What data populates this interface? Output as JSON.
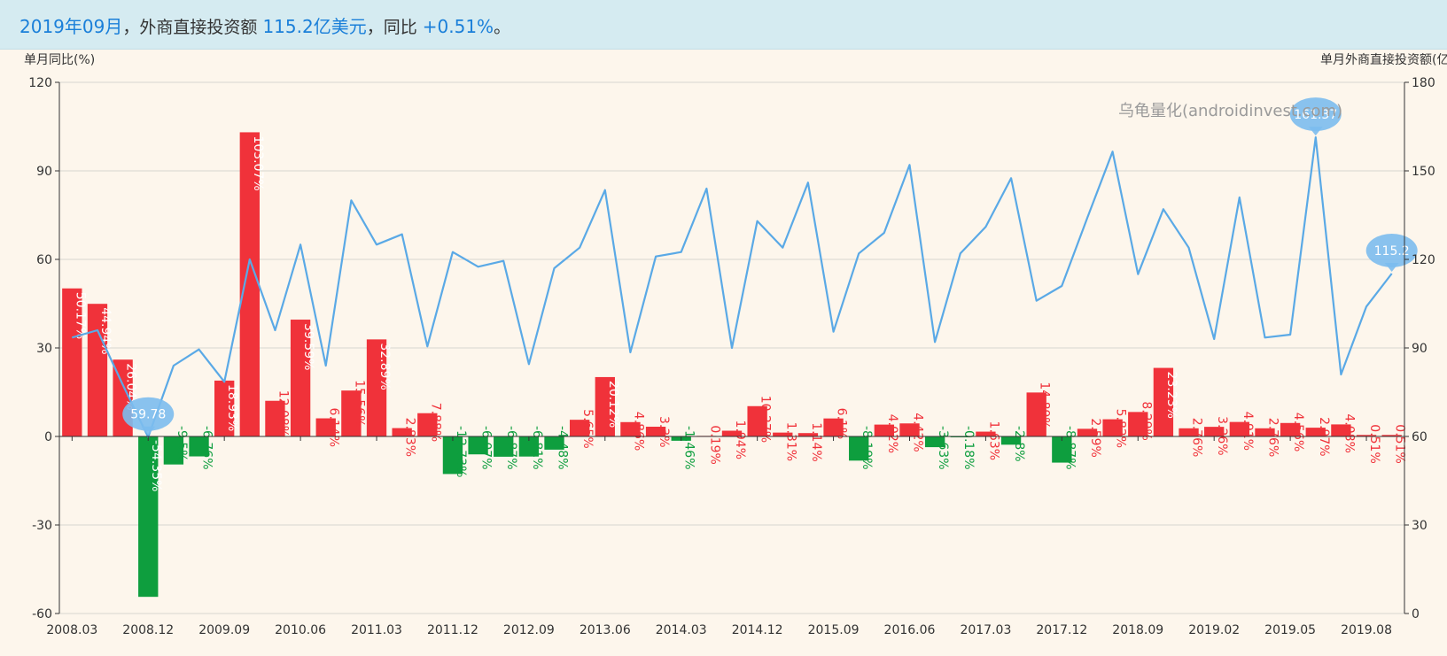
{
  "banner": {
    "period": "2019年09月",
    "sep1": "，",
    "label": "外商直接投资额",
    "amount": "115.2亿美元",
    "sep2": "，同比",
    "yoy": "+0.51%",
    "end": "。"
  },
  "watermark": "乌龟量化(androidinvest.com)",
  "colors": {
    "positive": "#f0323a",
    "negative": "#0e9e3e",
    "line": "#5aa9e6",
    "bubble": "#7cbcee"
  },
  "chart_data": {
    "type": "bar+line",
    "left_axis": {
      "label": "单月同比(%)",
      "range": [
        -60,
        120
      ],
      "ticks": [
        -60,
        -30,
        0,
        30,
        60,
        90,
        120
      ]
    },
    "right_axis": {
      "label": "单月外商直接投资额(亿美元)",
      "range": [
        0,
        180
      ],
      "ticks": [
        0,
        30,
        60,
        90,
        120,
        150,
        180
      ]
    },
    "x_tick_labels": [
      "2008.03",
      "2008.12",
      "2009.09",
      "2010.06",
      "2011.03",
      "2011.12",
      "2012.09",
      "2013.06",
      "2014.03",
      "2014.12",
      "2015.09",
      "2016.06",
      "2017.03",
      "2017.12",
      "2018.09",
      "2019.02",
      "2019.05",
      "2019.08"
    ],
    "bar_series": {
      "name": "单月同比",
      "values": [
        50.17,
        44.94,
        26.04,
        -54.35,
        -9.5,
        -6.76,
        18.93,
        103.07,
        12.08,
        39.59,
        6.14,
        15.56,
        32.89,
        2.83,
        7.88,
        -12.73,
        -6.07,
        -6.87,
        -6.81,
        -4.48,
        5.65,
        20.12,
        4.86,
        3.3,
        -1.46,
        0.19,
        1.94,
        10.27,
        1.31,
        1.14,
        6.1,
        -8.19,
        4.02,
        4.42,
        -3.63,
        -0.18,
        1.63,
        -2.8,
        14.89,
        -8.87,
        2.59,
        5.82,
        8.29,
        23.23,
        2.76,
        3.26,
        4.91,
        2.76,
        4.56,
        2.97,
        4.08,
        0.51,
        0.51
      ]
    },
    "line_series": {
      "name": "单月外商直接投资额",
      "values": [
        93.5,
        96.0,
        77.5,
        59.78,
        84.0,
        89.5,
        78.5,
        120.0,
        96.0,
        125.0,
        84.0,
        140.0,
        125.0,
        128.5,
        90.5,
        122.5,
        117.5,
        119.5,
        84.5,
        117.0,
        124.0,
        143.5,
        88.5,
        121.0,
        122.5,
        144.0,
        90.0,
        133.0,
        124.0,
        146.0,
        95.5,
        122.0,
        129.0,
        152.0,
        92.0,
        122.0,
        131.0,
        147.5,
        106.0,
        111.0,
        134.0,
        156.5,
        115.0,
        137.0,
        124.0,
        93.0,
        141.0,
        93.5,
        94.5,
        161.37,
        81.0,
        104.0,
        115.2
      ]
    },
    "callouts": [
      {
        "index": 3,
        "label": "59.78"
      },
      {
        "index": 49,
        "label": "161.37"
      },
      {
        "index": 52,
        "label": "115.2"
      }
    ]
  }
}
